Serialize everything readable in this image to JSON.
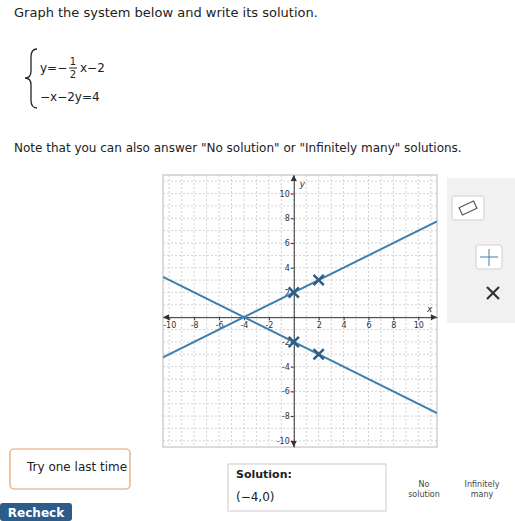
{
  "header": {
    "instruction": "Graph the system below and write its solution."
  },
  "system": {
    "eq1": {
      "lhs": "y=−",
      "num": "1",
      "den": "2",
      "rest": "x−2"
    },
    "eq2": "−x−2y=4"
  },
  "note": "Note that you can also answer \"No solution\" or \"Infinitely many\" solutions.",
  "chart_data": {
    "type": "line",
    "x_label": "x",
    "y_label": "y",
    "xlim": [
      -10.5,
      11.5
    ],
    "ylim": [
      -10.5,
      11.5
    ],
    "xticks": [
      -10,
      -8,
      -6,
      -4,
      -2,
      2,
      4,
      6,
      8,
      10
    ],
    "yticks": [
      -10,
      -8,
      -6,
      -4,
      -2,
      2,
      4,
      6,
      8,
      10
    ],
    "grid": true,
    "tick_labels": true,
    "series": [
      {
        "type": "line",
        "color": "#3f7fab",
        "line_style": "solid",
        "x": [
          -10.5,
          11.5
        ],
        "values": [
          -3.25,
          7.75
        ]
      },
      {
        "type": "line",
        "color": "#3f7fab",
        "line_style": "solid",
        "x": [
          -10.5,
          11.5
        ],
        "values": [
          3.25,
          -7.75
        ]
      },
      {
        "type": "scatter",
        "color": "#2c5d86",
        "marker": "x",
        "x": [
          0,
          2
        ],
        "values": [
          2,
          3
        ]
      },
      {
        "type": "scatter",
        "color": "#2c5d86",
        "marker": "x",
        "x": [
          0,
          2
        ],
        "values": [
          -2,
          -3
        ]
      }
    ]
  },
  "footer": {
    "feedback": "Try one last time",
    "solution_label": "Solution:",
    "solution_value": "(−4,0)",
    "no_solution": [
      "No",
      "solution"
    ],
    "infinitely_many": [
      "Infinitely",
      "many"
    ],
    "recheck": "Recheck"
  }
}
